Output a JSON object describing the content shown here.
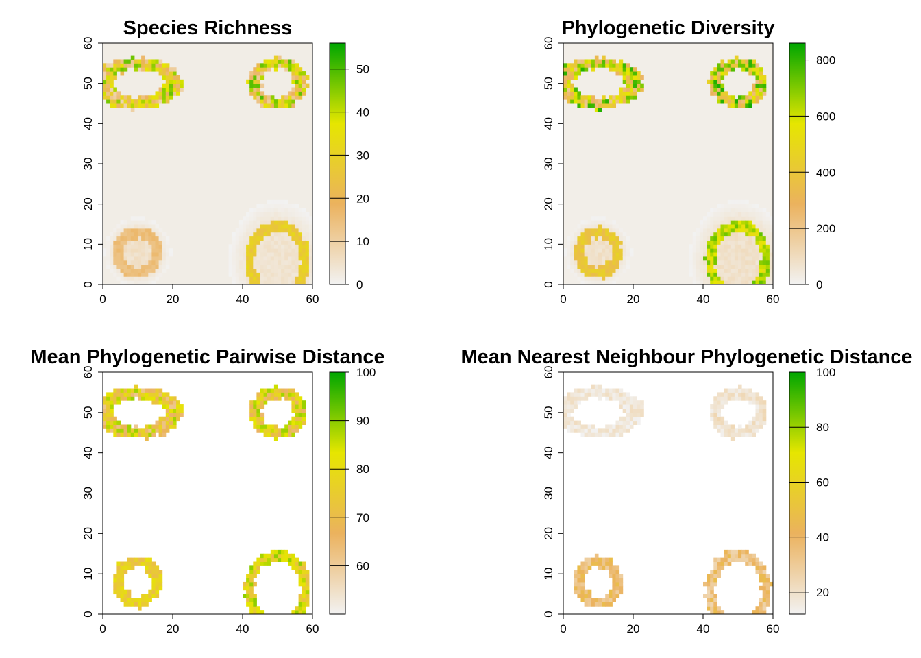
{
  "chart_data": [
    {
      "type": "heatmap",
      "title": "Species Richness",
      "xlabel": "",
      "ylabel": "",
      "xlim": [
        0,
        60
      ],
      "ylim": [
        0,
        60
      ],
      "x_ticks": [
        "0",
        "20",
        "40",
        "60"
      ],
      "y_ticks": [
        "0",
        "10",
        "20",
        "30",
        "40",
        "50",
        "60"
      ],
      "colorbar": {
        "range": [
          0,
          56
        ],
        "ticks": [
          "0",
          "10",
          "20",
          "30",
          "40",
          "50"
        ]
      },
      "background": 1.5,
      "rings": [
        {
          "center": [
            10,
            50
          ],
          "radius": [
            10,
            5
          ],
          "value": 28,
          "spread": 20,
          "halo": 0
        },
        {
          "center": [
            50,
            50
          ],
          "radius": [
            6.5,
            5
          ],
          "value": 30,
          "spread": 20,
          "halo": 0
        },
        {
          "center": [
            10,
            8
          ],
          "radius": [
            5.5,
            5
          ],
          "value": 15,
          "spread": 2,
          "halo": 6
        },
        {
          "center": [
            50,
            6
          ],
          "radius": [
            8,
            8.5
          ],
          "value": 28,
          "spread": 4,
          "halo": 5
        }
      ]
    },
    {
      "type": "heatmap",
      "title": "Phylogenetic Diversity",
      "xlabel": "",
      "ylabel": "",
      "xlim": [
        0,
        60
      ],
      "ylim": [
        0,
        60
      ],
      "x_ticks": [
        "0",
        "20",
        "40",
        "60"
      ],
      "y_ticks": [
        "0",
        "10",
        "20",
        "30",
        "40",
        "50",
        "60"
      ],
      "colorbar": {
        "range": [
          0,
          860
        ],
        "ticks": [
          "0",
          "200",
          "400",
          "600",
          "800"
        ]
      },
      "background": 20,
      "rings": [
        {
          "center": [
            10,
            50
          ],
          "radius": [
            10,
            5
          ],
          "value": 500,
          "spread": 320,
          "halo": 0
        },
        {
          "center": [
            50,
            50
          ],
          "radius": [
            6.5,
            5
          ],
          "value": 520,
          "spread": 320,
          "halo": 0
        },
        {
          "center": [
            10,
            8
          ],
          "radius": [
            5.5,
            5
          ],
          "value": 400,
          "spread": 60,
          "halo": 90
        },
        {
          "center": [
            50,
            6
          ],
          "radius": [
            8,
            8.5
          ],
          "value": 620,
          "spread": 120,
          "halo": 90
        }
      ]
    },
    {
      "type": "heatmap",
      "title": "Mean Phylogenetic Pairwise Distance",
      "xlabel": "",
      "ylabel": "",
      "xlim": [
        0,
        60
      ],
      "ylim": [
        0,
        60
      ],
      "x_ticks": [
        "0",
        "20",
        "40",
        "60"
      ],
      "y_ticks": [
        "0",
        "10",
        "20",
        "30",
        "40",
        "50",
        "60"
      ],
      "colorbar": {
        "range": [
          50,
          100
        ],
        "ticks": [
          "60",
          "70",
          "80",
          "90",
          "100"
        ]
      },
      "background": null,
      "rings": [
        {
          "center": [
            10,
            50
          ],
          "radius": [
            10,
            5
          ],
          "value": 75,
          "spread": 14,
          "halo": null
        },
        {
          "center": [
            50,
            50
          ],
          "radius": [
            6.5,
            5
          ],
          "value": 77,
          "spread": 12,
          "halo": null
        },
        {
          "center": [
            10,
            8
          ],
          "radius": [
            5.5,
            5
          ],
          "value": 76,
          "spread": 6,
          "halo": null
        },
        {
          "center": [
            50,
            6
          ],
          "radius": [
            8,
            8.5
          ],
          "value": 80,
          "spread": 10,
          "halo": null
        }
      ]
    },
    {
      "type": "heatmap",
      "title": "Mean Nearest Neighbour Phylogenetic Distance",
      "xlabel": "",
      "ylabel": "",
      "xlim": [
        0,
        60
      ],
      "ylim": [
        0,
        60
      ],
      "x_ticks": [
        "0",
        "20",
        "40",
        "60"
      ],
      "y_ticks": [
        "0",
        "10",
        "20",
        "30",
        "40",
        "50",
        "60"
      ],
      "colorbar": {
        "range": [
          12,
          100
        ],
        "ticks": [
          "20",
          "40",
          "60",
          "80"
        ],
        "top_tick": "100"
      },
      "background": null,
      "rings": [
        {
          "center": [
            10,
            50
          ],
          "radius": [
            10,
            5
          ],
          "value": 17,
          "spread": 5,
          "halo": null
        },
        {
          "center": [
            50,
            50
          ],
          "radius": [
            6.5,
            5
          ],
          "value": 19,
          "spread": 6,
          "halo": null
        },
        {
          "center": [
            10,
            8
          ],
          "radius": [
            5.5,
            5
          ],
          "value": 38,
          "spread": 10,
          "halo": null
        },
        {
          "center": [
            50,
            6
          ],
          "radius": [
            8,
            8.5
          ],
          "value": 36,
          "spread": 12,
          "halo": null
        }
      ]
    }
  ],
  "colors": {
    "scale": [
      "#F2F2F2",
      "#EBB25E",
      "#E6E600",
      "#00A600"
    ]
  }
}
